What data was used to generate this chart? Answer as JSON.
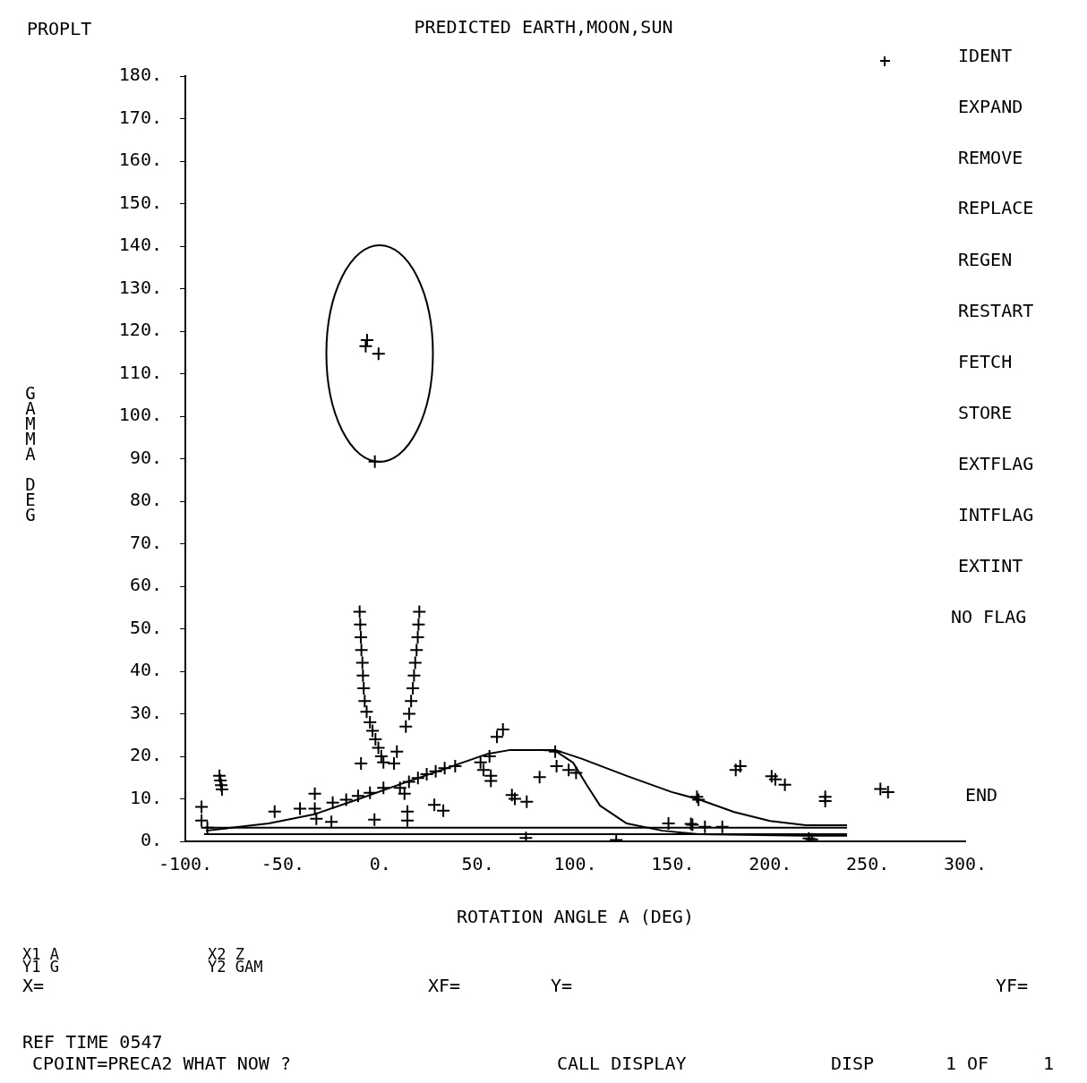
{
  "chart_data": {
    "type": "scatter",
    "title": "PREDICTED EARTH,MOON,SUN",
    "xlabel": "ROTATION ANGLE A (DEG)",
    "ylabel": "GAMMA DEG",
    "marker": "cross",
    "annotations": [
      "PROPLT",
      "IDENT",
      "EXPAND",
      "REMOVE",
      "REPLACE",
      "REGEN",
      "RESTART",
      "FETCH",
      "STORE",
      "EXTFLAG",
      "INTFLAG",
      "EXTINT",
      "NO FLAG",
      "END",
      "X1 A",
      "X2 Z",
      "Y1 G",
      "Y2 GAM",
      "X=",
      "XF=",
      "Y=",
      "YF=",
      "REF TIME 0547",
      "CPOINT=PRECA2 WHAT NOW ?",
      "CALL DISPLAY",
      "DISP",
      "1 OF",
      "1"
    ],
    "xlim": [
      -100,
      300
    ],
    "ylim": [
      0,
      180
    ],
    "xticks": [
      {
        "value": -100,
        "label": "-100."
      },
      {
        "value": -50,
        "label": "-50."
      },
      {
        "value": 0,
        "label": "0."
      },
      {
        "value": 50,
        "label": "50."
      },
      {
        "value": 100,
        "label": "100."
      },
      {
        "value": 150,
        "label": "150."
      },
      {
        "value": 200,
        "label": "200."
      },
      {
        "value": 250,
        "label": "250."
      },
      {
        "value": 300,
        "label": "300."
      }
    ],
    "yticks": [
      {
        "value": 0,
        "label": "0."
      },
      {
        "value": 10,
        "label": "10."
      },
      {
        "value": 20,
        "label": "20."
      },
      {
        "value": 30,
        "label": "30."
      },
      {
        "value": 40,
        "label": "40."
      },
      {
        "value": 50,
        "label": "50."
      },
      {
        "value": 60,
        "label": "60."
      },
      {
        "value": 70,
        "label": "70."
      },
      {
        "value": 80,
        "label": "80."
      },
      {
        "value": 90,
        "label": "90."
      },
      {
        "value": 100,
        "label": "100."
      },
      {
        "value": 110,
        "label": "110."
      },
      {
        "value": 120,
        "label": "120."
      },
      {
        "value": 130,
        "label": "130."
      },
      {
        "value": 140,
        "label": "140."
      },
      {
        "value": 150,
        "label": "150."
      },
      {
        "value": 160,
        "label": "160."
      },
      {
        "value": 170,
        "label": "170."
      },
      {
        "value": 180,
        "label": "180."
      }
    ],
    "series": [
      {
        "type": "line",
        "marker": "none",
        "color": "#000000",
        "x": [
          -89.4,
          -57.3,
          -34.3,
          -11.4,
          9.3,
          34.6,
          55.2,
          66.7,
          89.7,
          103.5,
          126.4,
          149.4,
          163.2,
          181.5,
          199.9,
          218.3,
          239.4
        ],
        "values": [
          2.5,
          4.2,
          6.3,
          9.9,
          13.3,
          17.3,
          20.6,
          21.5,
          21.5,
          19.4,
          15.4,
          11.6,
          9.9,
          6.9,
          4.8,
          3.8,
          3.8
        ]
      },
      {
        "type": "line",
        "marker": "none",
        "color": "#000000",
        "x": [
          80.5,
          89.7,
          98.9,
          105.8,
          112.7,
          126.4,
          144.8,
          163.2,
          218.3,
          239.4
        ],
        "values": [
          21.5,
          21.3,
          18.5,
          13.3,
          8.4,
          4.2,
          2.5,
          1.7,
          1.3,
          1.3
        ]
      },
      {
        "type": "line",
        "marker": "none",
        "color": "#000000",
        "x": [
          -90.4,
          239.4
        ],
        "values": [
          3.2,
          3.2
        ]
      },
      {
        "type": "line",
        "marker": "none",
        "color": "#000000",
        "x": [
          -90.4,
          239.4
        ],
        "values": [
          1.7,
          1.7
        ]
      },
      {
        "type": "scatter",
        "color": "#000000",
        "x": [
          -6.8,
          -7.5,
          -0.9,
          -2.8,
          -10.6,
          -10.3,
          -10.0,
          -9.7,
          -9.2,
          -8.9,
          -8.5,
          -8.0,
          -7.0,
          -5.3,
          -4.0,
          -2.5,
          -1.0,
          0.5,
          1.6,
          20.0,
          19.6,
          19.2,
          18.6,
          17.9,
          17.3,
          16.7,
          15.8,
          14.8,
          13.1,
          -82.5,
          -82.0,
          -81.6,
          -81.2,
          -91.7,
          -91.7,
          -88.7,
          -54.2,
          -41.2,
          -33.6,
          -33.6,
          -32.8,
          -25.1,
          -24.4,
          -17.5,
          -11.4,
          -5.3,
          -9.9,
          -3.0,
          1.6,
          7.0,
          8.5,
          10.1,
          12.4,
          13.9,
          13.9,
          14.7,
          19.3,
          23.8,
          28.4,
          33.0,
          27.7,
          32.3,
          38.4,
          51.4,
          52.9,
          56.7,
          56.7,
          56.0,
          59.8,
          62.9,
          67.5,
          69.0,
          75.1,
          81.7,
          89.7,
          90.4,
          96.6,
          100.4,
          74.7,
          121.0,
          147.8,
          159.3,
          162.4,
          163.2,
          160.1,
          166.5,
          175.4,
          182.3,
          184.6,
          200.7,
          202.6,
          207.5,
          228.2,
          228.2,
          256.5,
          260.4,
          219.8,
          221.3
        ],
        "values": [
          117.9,
          116.5,
          114.7,
          89.3,
          54.0,
          51.0,
          48.0,
          45.0,
          42.0,
          39.0,
          36.0,
          33.0,
          30.5,
          28.0,
          26.0,
          24.0,
          22.0,
          20.0,
          18.6,
          54.0,
          51.0,
          48.0,
          45.0,
          42.0,
          39.0,
          36.0,
          33.0,
          30.0,
          27.0,
          15.4,
          14.3,
          13.2,
          12.2,
          8.1,
          4.9,
          3.2,
          7.0,
          7.7,
          11.2,
          7.7,
          5.3,
          4.6,
          9.1,
          9.8,
          10.7,
          11.4,
          18.3,
          5.1,
          12.6,
          18.3,
          21.1,
          12.6,
          11.2,
          7.0,
          4.9,
          14.0,
          14.9,
          15.8,
          16.5,
          17.2,
          8.6,
          7.2,
          17.7,
          18.6,
          16.8,
          15.4,
          14.2,
          20.0,
          24.6,
          26.3,
          10.9,
          10.0,
          9.3,
          15.1,
          21.1,
          17.7,
          16.8,
          16.1,
          0.8,
          0.3,
          4.2,
          4.1,
          10.5,
          9.8,
          3.9,
          3.4,
          3.4,
          16.8,
          17.7,
          15.3,
          14.6,
          13.3,
          10.5,
          9.5,
          12.3,
          11.6,
          0.7,
          0.5
        ]
      }
    ]
  }
}
